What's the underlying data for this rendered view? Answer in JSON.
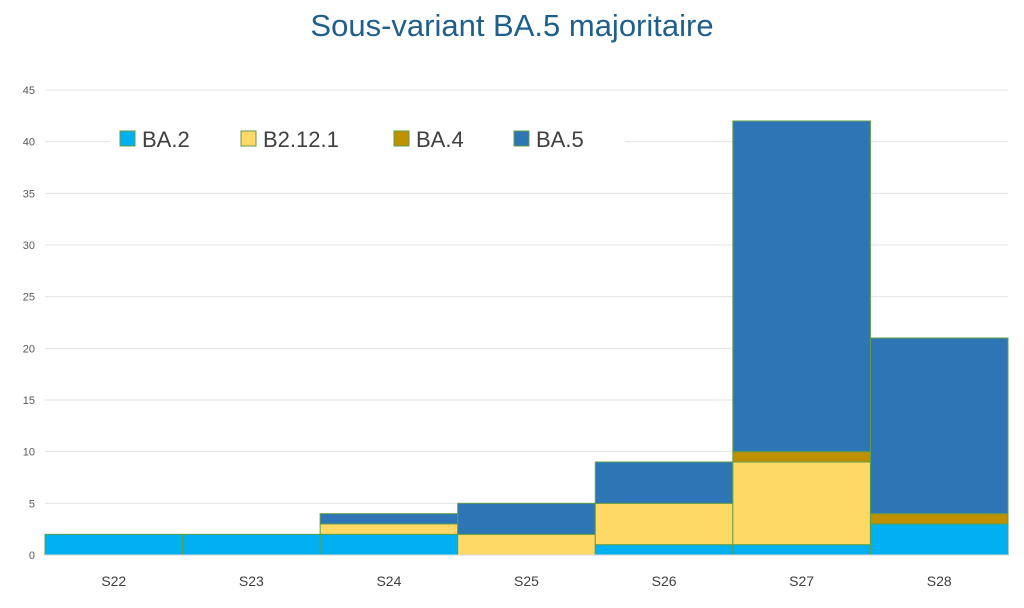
{
  "chart_data": {
    "type": "bar",
    "stacked": true,
    "title": "Sous-variant BA.5 majoritaire",
    "xlabel": "",
    "ylabel": "",
    "categories": [
      "S22",
      "S23",
      "S24",
      "S25",
      "S26",
      "S27",
      "S28"
    ],
    "series": [
      {
        "name": "BA.2",
        "color": "#00b0f0",
        "values": [
          2,
          2,
          2,
          0,
          1,
          1,
          3
        ]
      },
      {
        "name": "B2.12.1",
        "color": "#ffd966",
        "values": [
          0,
          0,
          1,
          2,
          4,
          8,
          0
        ]
      },
      {
        "name": "BA.4",
        "color": "#bf9000",
        "values": [
          0,
          0,
          0,
          0,
          0,
          1,
          1
        ]
      },
      {
        "name": "BA.5",
        "color": "#2e75b6",
        "values": [
          0,
          0,
          1,
          3,
          4,
          32,
          17
        ]
      }
    ],
    "ylim": [
      0,
      45
    ],
    "yticks": [
      0,
      5,
      10,
      15,
      20,
      25,
      30,
      35,
      40,
      45
    ],
    "grid": true,
    "legend_position": "top-left inside plot"
  }
}
